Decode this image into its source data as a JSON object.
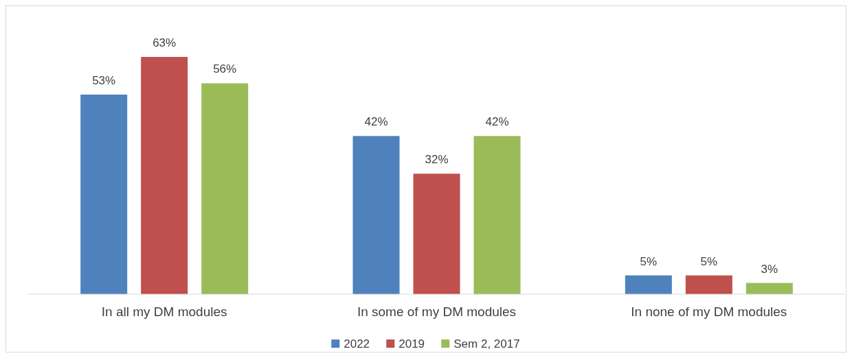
{
  "chart_data": {
    "type": "bar",
    "categories": [
      "In all my DM modules",
      "In some of my DM modules",
      "In none of my DM modules"
    ],
    "series": [
      {
        "name": "2022",
        "color": "#4f81bd",
        "values": [
          53,
          42,
          5
        ],
        "value_labels": [
          "53%",
          "42%",
          "5%"
        ]
      },
      {
        "name": "2019",
        "color": "#c0504d",
        "values": [
          63,
          32,
          5
        ],
        "value_labels": [
          "63%",
          "32%",
          "5%"
        ]
      },
      {
        "name": "Sem 2, 2017",
        "color": "#9bbb59",
        "values": [
          56,
          42,
          3
        ],
        "value_labels": [
          "56%",
          "42%",
          "3%"
        ]
      }
    ],
    "legend": "bottom"
  }
}
